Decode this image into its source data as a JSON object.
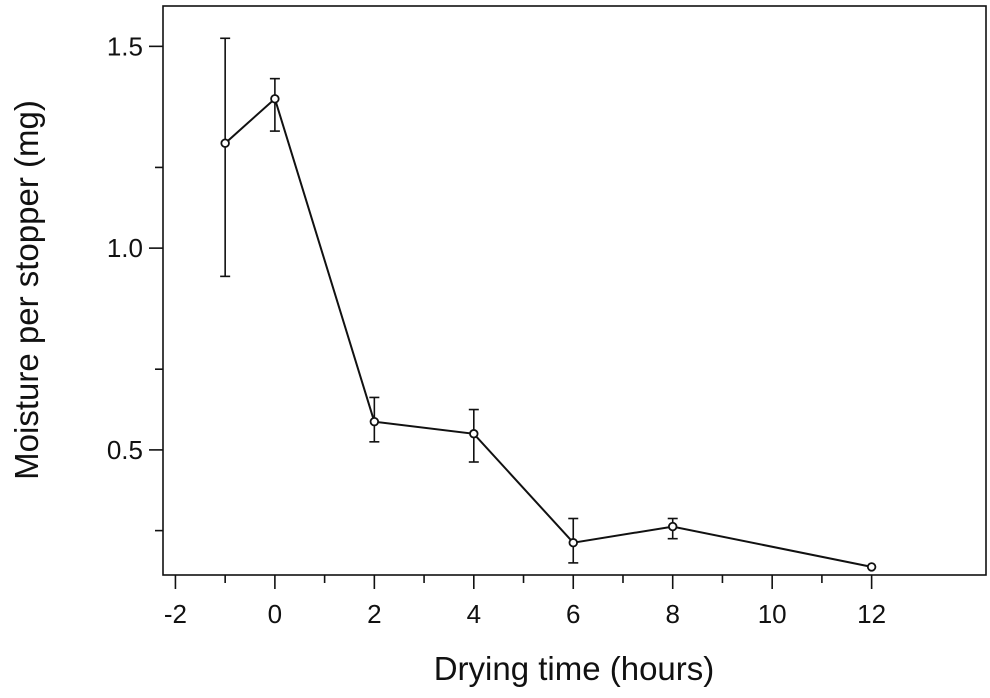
{
  "chart_data": {
    "type": "line",
    "title": "",
    "xlabel": "Drying time (hours)",
    "ylabel": "Moisture per stopper (mg)",
    "xlim": [
      -2.25,
      14.3
    ],
    "ylim": [
      0.19,
      1.6
    ],
    "x_ticks": [
      -2,
      0,
      2,
      4,
      6,
      8,
      10,
      12
    ],
    "x_tick_labels": [
      "-2",
      "0",
      "2",
      "4",
      "6",
      "8",
      "10",
      "12"
    ],
    "x_minor_ticks": [
      -1,
      1,
      3,
      5,
      7,
      9,
      11
    ],
    "y_ticks": [
      0.5,
      1.0,
      1.5
    ],
    "y_tick_labels": [
      "0.5",
      "1.0",
      "1.5"
    ],
    "y_minor_ticks": [
      0.3,
      0.7,
      1.2
    ],
    "grid": false,
    "legend": "none",
    "series": [
      {
        "x": [
          -1,
          0,
          2,
          4,
          6,
          8,
          12
        ],
        "y": [
          1.26,
          1.37,
          0.57,
          0.54,
          0.27,
          0.31,
          0.21
        ],
        "err_upper": [
          1.52,
          1.42,
          0.63,
          0.6,
          0.33,
          0.33,
          null
        ],
        "err_lower": [
          0.93,
          1.29,
          0.52,
          0.47,
          0.22,
          0.28,
          null
        ]
      }
    ]
  }
}
